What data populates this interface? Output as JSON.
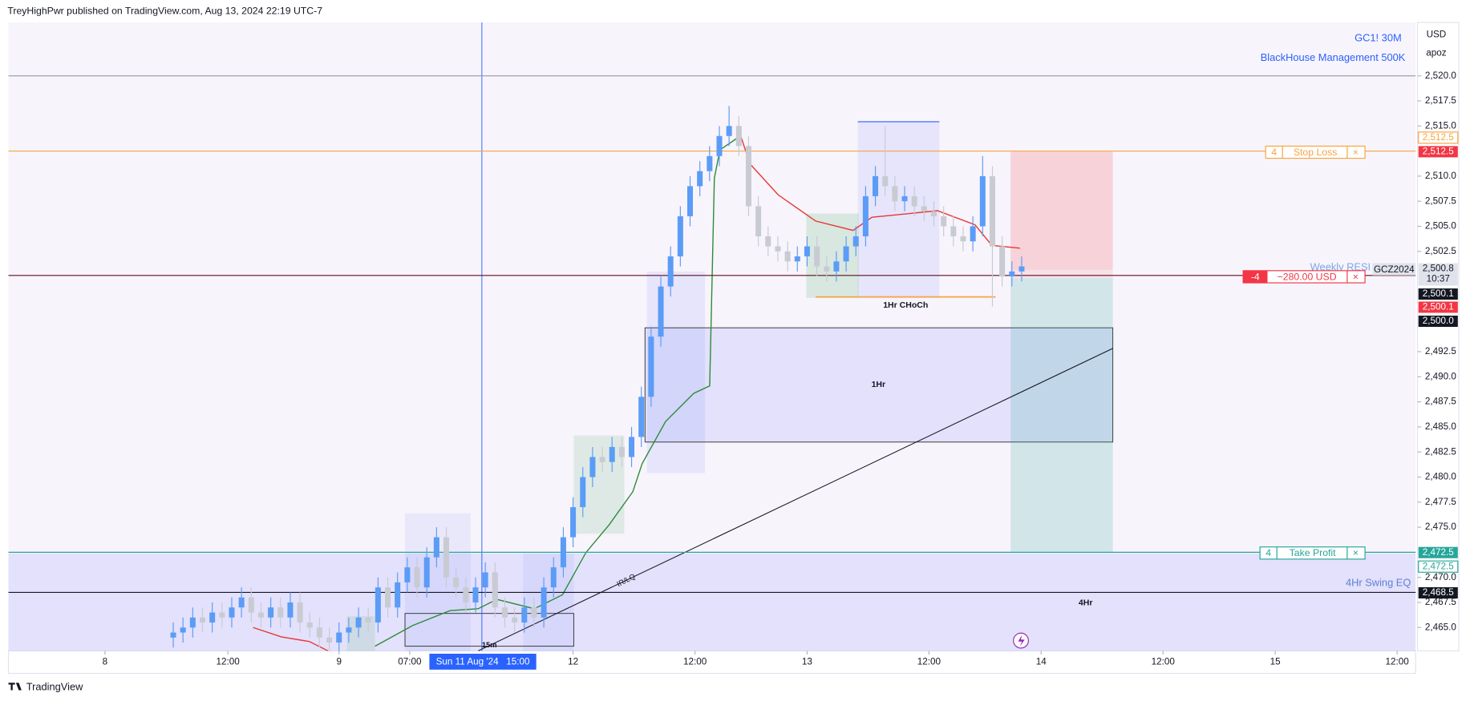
{
  "header": "TreyHighPwr published on TradingView.com, Aug 13, 2024 22:19 UTC-7",
  "footer": "TradingView",
  "chart_data": {
    "type": "candlestick",
    "symbol": "GC1! 30M",
    "indicator": "BlackHouse Management 500K",
    "currency": "USD",
    "scale_mode": "apoz",
    "up_color": "#5b9cf6",
    "down_color": "#c8cbd2",
    "x": [
      0,
      2,
      4,
      6,
      8,
      10,
      12,
      14,
      16,
      18,
      20,
      22,
      24,
      26,
      28,
      30,
      32,
      34,
      36,
      38,
      40,
      42,
      44,
      46,
      48,
      50,
      52,
      54,
      56,
      58,
      60,
      62,
      64,
      66,
      68,
      70,
      72,
      74,
      76,
      78,
      80,
      82,
      84,
      86,
      88,
      90,
      92,
      94,
      96,
      98,
      100,
      102,
      104,
      106,
      108,
      110,
      112,
      114,
      116,
      118,
      120,
      122,
      124,
      126,
      128,
      130,
      132,
      134,
      136,
      138,
      140,
      142,
      144,
      146,
      148,
      150,
      152,
      154,
      156,
      158,
      160,
      162,
      164,
      166,
      168,
      170,
      172,
      174
    ],
    "open": [
      2464,
      2464.5,
      2465,
      2466,
      2465.5,
      2466.5,
      2466,
      2467,
      2468,
      2466.5,
      2466,
      2467,
      2466,
      2467.5,
      2465.5,
      2465,
      2464,
      2463.5,
      2464.5,
      2465,
      2466,
      2465.5,
      2469,
      2467,
      2469.5,
      2471,
      2469,
      2472,
      2474,
      2470,
      2469,
      2467.5,
      2469,
      2470.5,
      2467,
      2466,
      2465.5,
      2467,
      2466,
      2469,
      2471,
      2474,
      2477,
      2480,
      2482,
      2481.5,
      2483,
      2482,
      2484,
      2488,
      2494,
      2499,
      2502,
      2506,
      2509,
      2510.5,
      2512,
      2514,
      2515,
      2513,
      2507,
      2504,
      2503,
      2502.5,
      2501.5,
      2502,
      2503,
      2501,
      2500.5,
      2501.5,
      2503,
      2504,
      2508,
      2510,
      2509,
      2507.5,
      2508,
      2507,
      2506.5,
      2506,
      2505,
      2504,
      2503.5,
      2505,
      2510,
      2503,
      2500,
      2500.5
    ],
    "high": [
      2465.5,
      2466,
      2467,
      2467,
      2467.5,
      2467.5,
      2468,
      2469,
      2469,
      2467.5,
      2468,
      2468,
      2468.5,
      2468.5,
      2466.5,
      2466,
      2465,
      2465.5,
      2466,
      2467,
      2467,
      2470,
      2470,
      2470.5,
      2472,
      2472,
      2473,
      2475,
      2475,
      2471,
      2470,
      2470,
      2471.5,
      2471.5,
      2468,
      2467,
      2468,
      2468,
      2470,
      2472,
      2475,
      2478,
      2481,
      2483,
      2483,
      2484,
      2484,
      2485,
      2489,
      2495,
      2500,
      2503,
      2507,
      2510,
      2511.5,
      2513,
      2515,
      2517,
      2516,
      2514,
      2508,
      2505,
      2504,
      2503.5,
      2503,
      2504,
      2504,
      2502,
      2502.5,
      2504,
      2505,
      2509,
      2511,
      2515,
      2510,
      2509,
      2509,
      2508,
      2507.5,
      2507,
      2506,
      2505,
      2506,
      2512,
      2511,
      2504,
      2501.5,
      2502
    ],
    "low": [
      2463,
      2463.5,
      2464,
      2464.5,
      2464.5,
      2465,
      2465,
      2466,
      2465.5,
      2465,
      2465,
      2465,
      2465,
      2464.5,
      2464,
      2463,
      2462.5,
      2462.5,
      2463.5,
      2464,
      2464.5,
      2464.5,
      2466,
      2466,
      2468.5,
      2468,
      2468,
      2471,
      2469,
      2468,
      2466.5,
      2466.5,
      2468,
      2466,
      2465,
      2464.5,
      2464.5,
      2465,
      2465,
      2468,
      2470,
      2473,
      2476,
      2479,
      2480.5,
      2480.5,
      2481,
      2481,
      2483,
      2487,
      2493,
      2498,
      2501,
      2505,
      2508,
      2509.5,
      2511,
      2513,
      2512,
      2506,
      2503,
      2502,
      2501.5,
      2500.5,
      2500.5,
      2501,
      2500,
      2499.5,
      2499.5,
      2500.5,
      2502,
      2503,
      2507,
      2508,
      2506.5,
      2506.5,
      2506,
      2505.5,
      2505,
      2504,
      2503,
      2502.5,
      2502.5,
      2504,
      2497,
      2499,
      2499,
      2499.5
    ],
    "close": [
      2464.5,
      2465,
      2466,
      2465.5,
      2466.5,
      2466,
      2467,
      2468,
      2466.5,
      2466,
      2467,
      2466,
      2467.5,
      2465.5,
      2465,
      2464,
      2463.5,
      2464.5,
      2465,
      2466,
      2465.5,
      2469,
      2467,
      2469.5,
      2471,
      2469,
      2472,
      2474,
      2470,
      2469,
      2467.5,
      2469,
      2470.5,
      2467,
      2466,
      2465.5,
      2467,
      2466,
      2469,
      2471,
      2474,
      2477,
      2480,
      2482,
      2481.5,
      2483,
      2482,
      2484,
      2488,
      2494,
      2499,
      2502,
      2506,
      2509,
      2510.5,
      2512,
      2514,
      2515,
      2513,
      2507,
      2504,
      2503,
      2502.5,
      2501.5,
      2502,
      2503,
      2501,
      2500.5,
      2501.5,
      2503,
      2504,
      2508,
      2510,
      2509,
      2507.5,
      2508,
      2507,
      2506.5,
      2506,
      2505,
      2504,
      2503.5,
      2505,
      2510,
      2503,
      2500,
      2500.5,
      2501
    ],
    "xlim": [
      -33.8,
      254.8
    ],
    "xticks": [
      {
        "value": -14,
        "label": "8"
      },
      {
        "value": 11.2,
        "label": "12:00"
      },
      {
        "value": 34,
        "label": "9"
      },
      {
        "value": 48.5,
        "label": "07:00"
      },
      {
        "value": 82,
        "label": "12"
      },
      {
        "value": 107,
        "label": "12:00"
      },
      {
        "value": 130,
        "label": "13"
      },
      {
        "value": 155,
        "label": "12:00"
      },
      {
        "value": 178,
        "label": "14"
      },
      {
        "value": 203,
        "label": "12:00"
      },
      {
        "value": 226,
        "label": "15"
      },
      {
        "value": 251,
        "label": "12:00"
      }
    ],
    "ylim": [
      2462.67,
      2525.32
    ],
    "yticks": [
      {
        "value": 2465,
        "label": "2,465.0"
      },
      {
        "value": 2467.5,
        "label": "2,467.5"
      },
      {
        "value": 2470,
        "label": "2,470.0"
      },
      {
        "value": 2475,
        "label": "2,475.0"
      },
      {
        "value": 2477.5,
        "label": "2,477.5"
      },
      {
        "value": 2480,
        "label": "2,480.0"
      },
      {
        "value": 2482.5,
        "label": "2,482.5"
      },
      {
        "value": 2485,
        "label": "2,485.0"
      },
      {
        "value": 2487.5,
        "label": "2,487.5"
      },
      {
        "value": 2490,
        "label": "2,490.0"
      },
      {
        "value": 2492.5,
        "label": "2,492.5"
      },
      {
        "value": 2502.5,
        "label": "2,502.5"
      },
      {
        "value": 2505,
        "label": "2,505.0"
      },
      {
        "value": 2507.5,
        "label": "2,507.5"
      },
      {
        "value": 2510,
        "label": "2,510.0"
      },
      {
        "value": 2515,
        "label": "2,515.0"
      },
      {
        "value": 2517.5,
        "label": "2,517.5"
      },
      {
        "value": 2520,
        "label": "2,520.0"
      }
    ],
    "levels": [
      {
        "value": 2520,
        "color": "#9598a1"
      },
      {
        "value": 2512.5,
        "color": "#f7a440",
        "label": "2,512.5"
      },
      {
        "value": 2500.1,
        "color": "#5d0f1a",
        "label": "2,500.1"
      },
      {
        "value": 2472.5,
        "color": "#26a69a",
        "label": "2,472.5"
      },
      {
        "value": 2468.5,
        "color": "#131722",
        "label": "2,468.5"
      }
    ],
    "tags": {
      "last": "2,500.8",
      "countdown": "10:37",
      "ask": "2,500.0"
    },
    "orders": {
      "stop_qty": "4",
      "stop_label": "Stop Loss",
      "pos_qty": "-4",
      "pos_pnl": "−280.00 USD",
      "tp_qty": "4",
      "tp_label": "Take Profit",
      "close": "×"
    },
    "annotations": {
      "weekly": "Weekly RESI",
      "contract": "GCZ2024",
      "choch": "1Hr CHoCh",
      "h1": "1Hr",
      "h4": "4Hr",
      "eq": "4Hr Swing EQ",
      "irlq": "IR/LQ",
      "m15": "15m"
    },
    "crosshair": {
      "date": "Sun 11 Aug '24",
      "time": "15:00"
    }
  }
}
